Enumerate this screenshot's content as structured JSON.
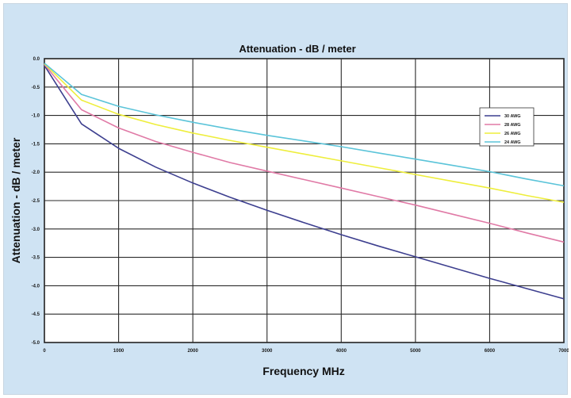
{
  "chart_data": {
    "type": "line",
    "title": "Attenuation - dB / meter",
    "xlabel": "Frequency MHz",
    "ylabel": "Attenuation - dB / meter",
    "xlim": [
      0,
      7000
    ],
    "ylim": [
      -5.0,
      0.0
    ],
    "x_ticks": [
      0,
      1000,
      2000,
      3000,
      4000,
      5000,
      6000,
      7000
    ],
    "x_tick_labels": [
      "0",
      "1000",
      "2000",
      "3000",
      "4000",
      "5000",
      "6000",
      "7000"
    ],
    "y_ticks": [
      0.0,
      -0.5,
      -1.0,
      -1.5,
      -2.0,
      -2.5,
      -3.0,
      -3.5,
      -4.0,
      -4.5,
      -5.0
    ],
    "y_tick_labels": [
      "0.0",
      "-0.5",
      "-1.0",
      "-1.5",
      "-2.0",
      "-2.5",
      "-3.0",
      "-3.5",
      "-4.0",
      "-4.5",
      "-5.0"
    ],
    "grid": true,
    "legend_position": "right",
    "x": [
      0,
      500,
      1000,
      1500,
      2000,
      2500,
      3000,
      3500,
      4000,
      4500,
      5000,
      5500,
      6000,
      6500,
      7000
    ],
    "series": [
      {
        "name": "30 AWG",
        "color": "#3d3f8f",
        "values": [
          -0.12,
          -1.15,
          -1.58,
          -1.91,
          -2.19,
          -2.44,
          -2.67,
          -2.89,
          -3.1,
          -3.3,
          -3.49,
          -3.68,
          -3.87,
          -4.05,
          -4.23
        ]
      },
      {
        "name": "28 AWG",
        "color": "#e07aa6",
        "values": [
          -0.1,
          -0.9,
          -1.22,
          -1.46,
          -1.65,
          -1.83,
          -1.98,
          -2.13,
          -2.28,
          -2.43,
          -2.58,
          -2.74,
          -2.9,
          -3.07,
          -3.23
        ]
      },
      {
        "name": "26 AWG",
        "color": "#eeee3c",
        "values": [
          -0.09,
          -0.73,
          -0.98,
          -1.16,
          -1.31,
          -1.44,
          -1.56,
          -1.68,
          -1.8,
          -1.92,
          -2.04,
          -2.16,
          -2.28,
          -2.41,
          -2.53
        ]
      },
      {
        "name": "24 AWG",
        "color": "#5bc4d9",
        "values": [
          -0.08,
          -0.63,
          -0.84,
          -0.99,
          -1.12,
          -1.24,
          -1.35,
          -1.45,
          -1.55,
          -1.66,
          -1.77,
          -1.88,
          -1.99,
          -2.12,
          -2.24
        ]
      }
    ]
  }
}
